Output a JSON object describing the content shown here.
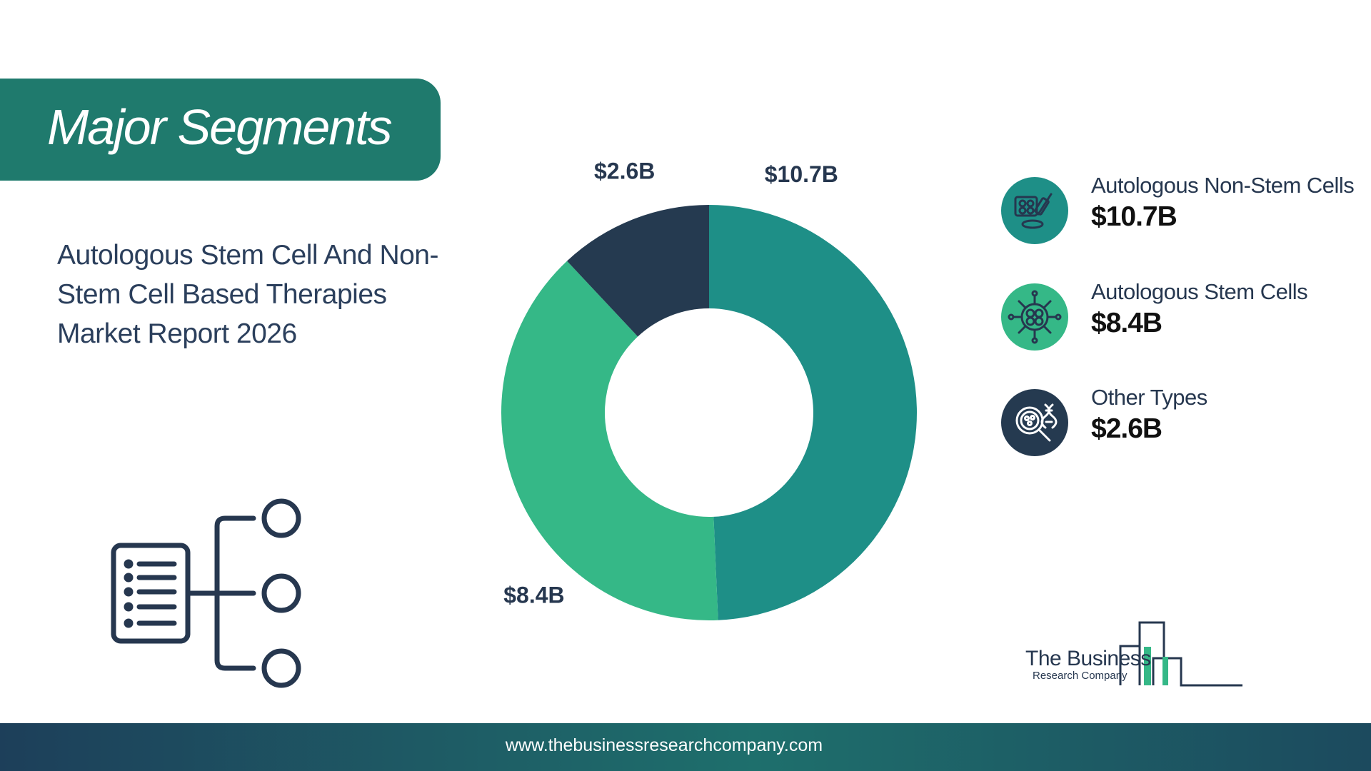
{
  "header": {
    "title": "Major Segments"
  },
  "report": {
    "title": "Autologous Stem Cell And Non-Stem Cell Based Therapies Market Report 2026"
  },
  "chart_data": {
    "type": "pie",
    "donut": true,
    "unit": "$B",
    "categories": [
      "Autologous Non-Stem Cells",
      "Autologous Stem Cells",
      "Other Types"
    ],
    "values": [
      10.7,
      8.4,
      2.6
    ],
    "data_labels": [
      "$10.7B",
      "$8.4B",
      "$2.6B"
    ],
    "colors": [
      "#1e8f87",
      "#35b887",
      "#253a50"
    ],
    "legend_position": "right"
  },
  "legend": {
    "items": [
      {
        "label": "Autologous Non-Stem Cells",
        "value": "$10.7B",
        "color": "#1e8f87",
        "icon": "cell-culture-icon"
      },
      {
        "label": "Autologous Stem Cells",
        "value": "$8.4B",
        "color": "#35b887",
        "icon": "stem-cell-icon"
      },
      {
        "label": "Other Types",
        "value": "$2.6B",
        "color": "#253a50",
        "icon": "microscope-dna-icon"
      }
    ]
  },
  "decoration": {
    "icon": "segment-hierarchy-icon"
  },
  "brand": {
    "line1": "The Business",
    "line2": "Research Company"
  },
  "footer": {
    "url": "www.thebusinessresearchcompany.com"
  }
}
